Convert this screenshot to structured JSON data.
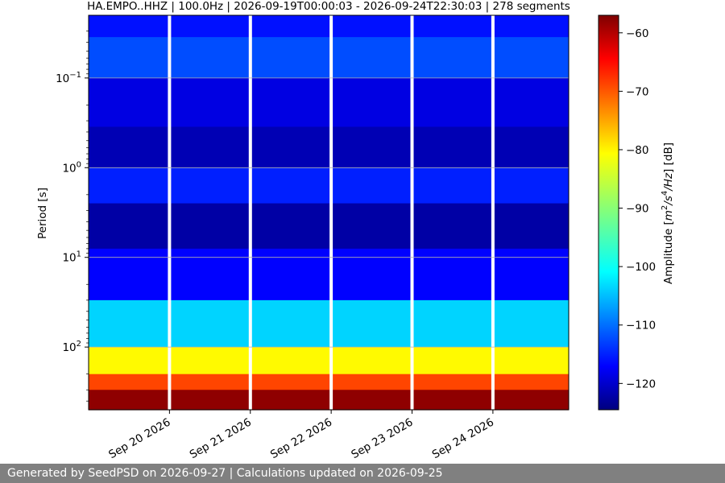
{
  "title": "HA.EMPO..HHZ | 100.0Hz | 2026-09-19T00:00:03 - 2026-09-24T22:30:03 | 278 segments",
  "footer": "Generated by SeedPSD on 2026-09-27 | Calculations updated on 2026-09-25",
  "chart_data": {
    "type": "heatmap",
    "title": "HA.EMPO..HHZ | 100.0Hz | 2026-09-19T00:00:03 - 2026-09-24T22:30:03 | 278 segments",
    "ylabel": "Period [s]",
    "y_scale": "log",
    "y_inverted": true,
    "y_ticks": [
      {
        "value": 0.1,
        "base": "10",
        "exp": "−1"
      },
      {
        "value": 1,
        "base": "10",
        "exp": "0"
      },
      {
        "value": 10,
        "base": "10",
        "exp": "1"
      },
      {
        "value": 100,
        "base": "10",
        "exp": "2"
      }
    ],
    "ylim": [
      0.02,
      500
    ],
    "x_ticks": [
      {
        "date": "2026-09-20",
        "label": "Sep 20 2026"
      },
      {
        "date": "2026-09-21",
        "label": "Sep 21 2026"
      },
      {
        "date": "2026-09-22",
        "label": "Sep 22 2026"
      },
      {
        "date": "2026-09-23",
        "label": "Sep 23 2026"
      },
      {
        "date": "2026-09-24",
        "label": "Sep 24 2026"
      }
    ],
    "xlim": [
      "2026-09-19T00:00:03",
      "2026-09-24T22:30:03"
    ],
    "gaps": [
      "2026-09-20",
      "2026-09-21",
      "2026-09-22",
      "2026-09-23",
      "2026-09-24"
    ],
    "colorbar": {
      "label": "Amplitude",
      "unit": "[dB]",
      "ticks": [
        -60,
        -70,
        -80,
        -90,
        -100,
        -110,
        -120
      ],
      "range": [
        -124.5,
        -57
      ],
      "colormap": "jet"
    },
    "bands": [
      {
        "period": [
          0.02,
          0.035
        ],
        "amplitude": -115
      },
      {
        "period": [
          0.035,
          0.1
        ],
        "amplitude": -111
      },
      {
        "period": [
          0.1,
          0.35
        ],
        "amplitude": -118
      },
      {
        "period": [
          0.35,
          1.0
        ],
        "amplitude": -121
      },
      {
        "period": [
          1.0,
          2.5
        ],
        "amplitude": -114
      },
      {
        "period": [
          2.5,
          8.0
        ],
        "amplitude": -122
      },
      {
        "period": [
          8.0,
          30.0
        ],
        "amplitude": -116
      },
      {
        "period": [
          30.0,
          100.0
        ],
        "amplitude": -102
      },
      {
        "period": [
          100.0,
          200.0
        ],
        "amplitude": -82
      },
      {
        "period": [
          200.0,
          300.0
        ],
        "amplitude": -70
      },
      {
        "period": [
          300.0,
          500.0
        ],
        "amplitude": -58
      }
    ],
    "grid": true
  }
}
